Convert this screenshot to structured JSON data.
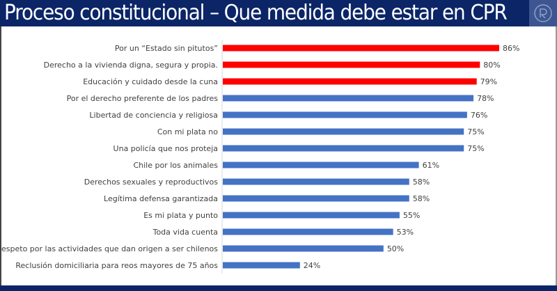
{
  "header": {
    "title": "Proceso constitucional – Que medida debe estar en CPR",
    "logo_icon": "circular-logo-icon"
  },
  "colors": {
    "header_bg": "#0b2566",
    "highlight": "#ff0000",
    "default_bar": "#4472c4"
  },
  "chart_data": {
    "type": "bar",
    "orientation": "horizontal",
    "title": "",
    "xlim": [
      0,
      100
    ],
    "grid": false,
    "categories": [
      "Por un “Estado sin pitutos”",
      "Derecho a la vivienda digna, segura y propia.",
      "Educación y cuidado desde la cuna",
      "Por el derecho preferente de los padres",
      "Libertad de conciencia y religiosa",
      "Con mi plata no",
      "Una policía que nos proteja",
      "Chile por los animales",
      "Derechos sexuales y reproductivos",
      "Legítima defensa garantizada",
      "Es mi plata y punto",
      "Toda vida cuenta",
      "Respeto por las actividades que dan origen a ser chilenos",
      "Reclusión domiciliaria para reos mayores de 75 años"
    ],
    "values": [
      86,
      80,
      79,
      78,
      76,
      75,
      75,
      61,
      58,
      58,
      55,
      53,
      50,
      24
    ],
    "value_labels": [
      "86%",
      "80%",
      "79%",
      "78%",
      "76%",
      "75%",
      "75%",
      "61%",
      "58%",
      "58%",
      "55%",
      "53%",
      "50%",
      "24%"
    ],
    "highlighted": [
      true,
      true,
      true,
      false,
      false,
      false,
      false,
      false,
      false,
      false,
      false,
      false,
      false,
      false
    ]
  }
}
